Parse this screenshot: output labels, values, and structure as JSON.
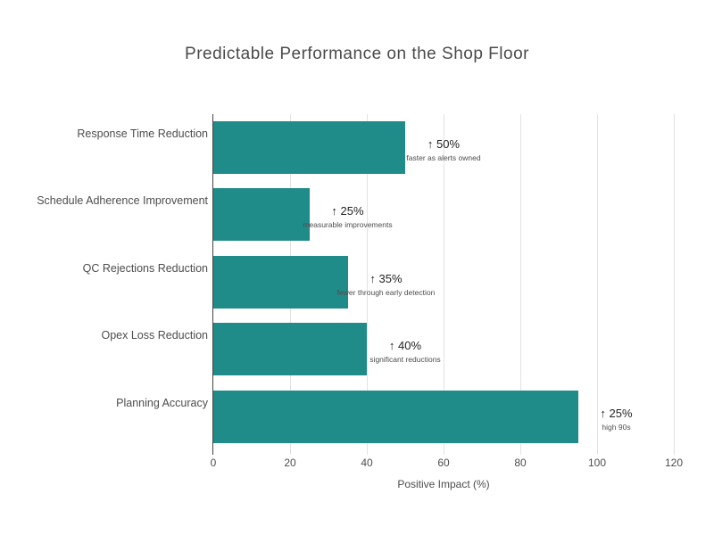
{
  "title": "Predictable Performance on the Shop Floor",
  "chart_data": {
    "type": "bar",
    "orientation": "horizontal",
    "title": "Predictable Performance on the Shop Floor",
    "categories": [
      "Response Time Reduction",
      "Schedule Adherence Improvement",
      "QC Rejections Reduction",
      "Opex Loss Reduction",
      "Planning Accuracy"
    ],
    "values": [
      50,
      25,
      35,
      40,
      95
    ],
    "annotations": [
      {
        "label": "↑ 50%",
        "note": "faster as alerts owned"
      },
      {
        "label": "↑ 25%",
        "note": "measurable improvements"
      },
      {
        "label": "↑ 35%",
        "note": "fewer through early detection"
      },
      {
        "label": "↑ 40%",
        "note": "significant reductions"
      },
      {
        "label": "↑ 25%",
        "note": "high 90s"
      }
    ],
    "xlabel": "Positive Impact (%)",
    "xlim": [
      0,
      120
    ],
    "xticks": [
      0,
      20,
      40,
      60,
      80,
      100,
      120
    ],
    "grid": "vertical",
    "legend": "none",
    "colors": {
      "bar": "#208C89",
      "gridline": "#e2e2e2",
      "axis_line": "#444444",
      "title_text": "#4a4a4a",
      "label_text": "#4d4d4d",
      "annotation_text": "#222222",
      "note_text": "#4d4d4d"
    }
  }
}
